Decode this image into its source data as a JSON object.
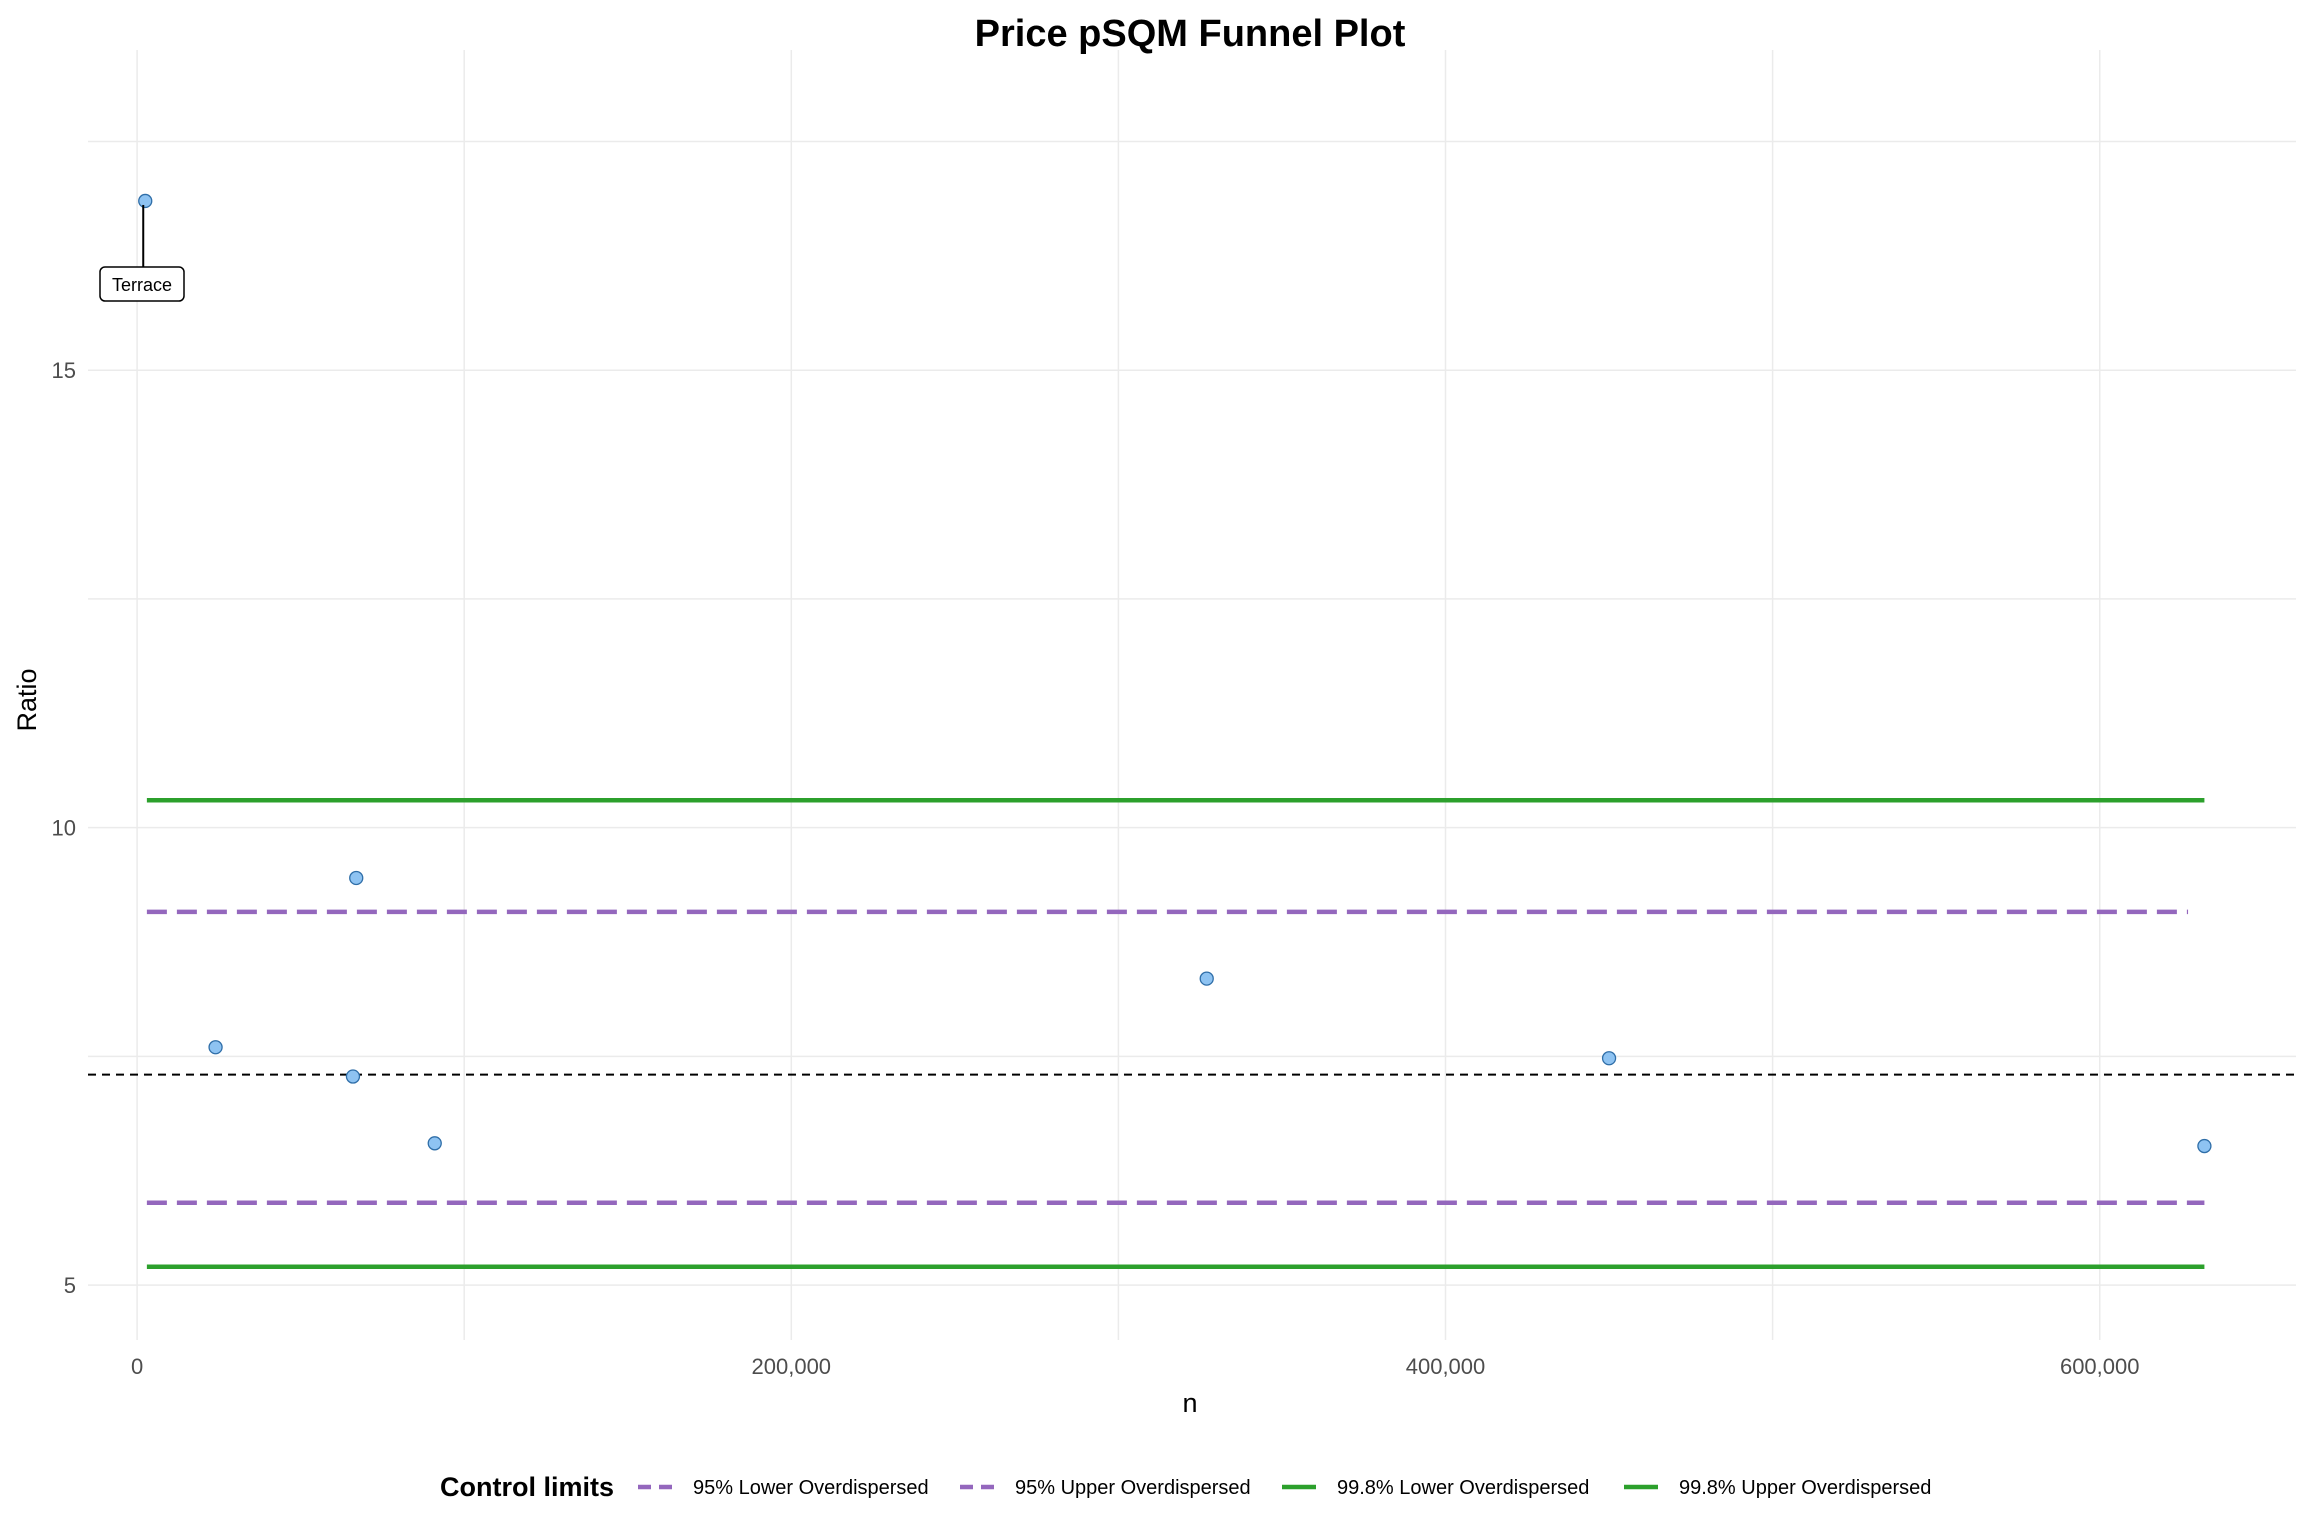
{
  "chart_data": {
    "type": "scatter",
    "title": "Price pSQM Funnel Plot",
    "xlabel": "n",
    "ylabel": "Ratio",
    "xlim": [
      -15000,
      660000
    ],
    "ylim": [
      4.4,
      18.5
    ],
    "x_ticks": [
      0,
      200000,
      400000,
      600000
    ],
    "x_tick_labels": [
      "0",
      "200,000",
      "400,000",
      "600,000"
    ],
    "y_ticks": [
      5,
      10,
      15
    ],
    "y_tick_labels": [
      "5",
      "10",
      "15"
    ],
    "grid": true,
    "points": [
      {
        "x": 2500,
        "y": 16.85,
        "label": "Terrace"
      },
      {
        "x": 24000,
        "y": 7.6
      },
      {
        "x": 67000,
        "y": 9.45
      },
      {
        "x": 66000,
        "y": 7.28
      },
      {
        "x": 91000,
        "y": 6.55
      },
      {
        "x": 327000,
        "y": 8.35
      },
      {
        "x": 450000,
        "y": 7.48
      },
      {
        "x": 632000,
        "y": 6.52
      }
    ],
    "target_line": {
      "y": 7.3,
      "style": "dotted"
    },
    "control_limits": [
      {
        "name": "95% Lower Overdispersed",
        "y": 5.9,
        "x_range": [
          3000,
          632000
        ],
        "color": "#9467bd",
        "dash": "dashed"
      },
      {
        "name": "95% Upper Overdispersed",
        "y": 9.08,
        "x_range": [
          3000,
          627000
        ],
        "color": "#9467bd",
        "dash": "dashed"
      },
      {
        "name": "99.8% Lower Overdispersed",
        "y": 5.2,
        "x_range": [
          3000,
          632000
        ],
        "color": "#2ca02c",
        "dash": "solid"
      },
      {
        "name": "99.8% Upper Overdispersed",
        "y": 10.3,
        "x_range": [
          3000,
          632000
        ],
        "color": "#2ca02c",
        "dash": "solid"
      }
    ],
    "legend": {
      "title": "Control limits",
      "position": "bottom"
    },
    "colors": {
      "point_fill": "#8ec3f2",
      "point_stroke": "#2f6ea8",
      "grid": "#ebebeb"
    }
  }
}
